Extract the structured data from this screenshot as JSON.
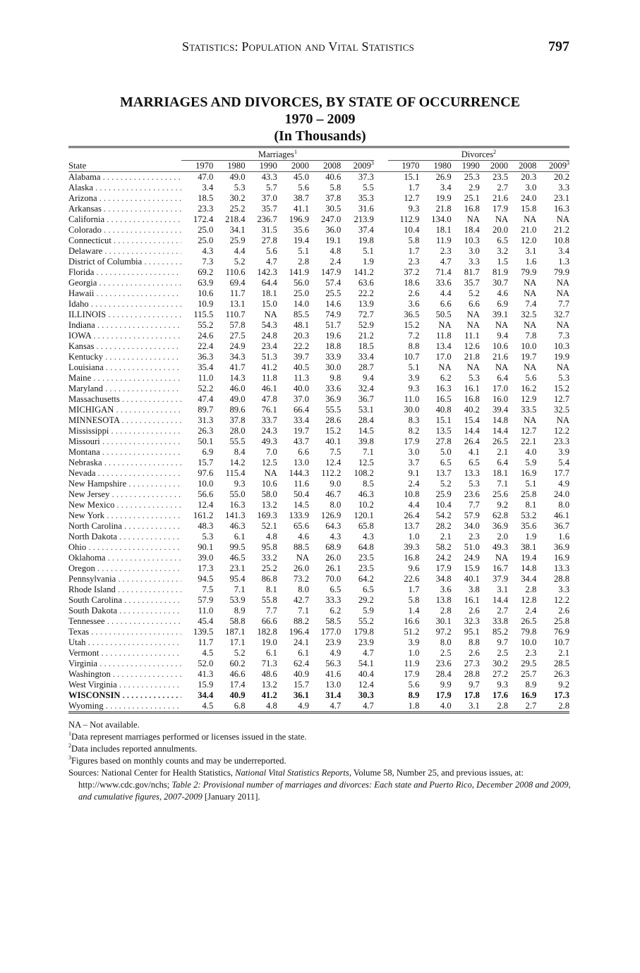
{
  "header": {
    "running_title": "Statistics: Population and Vital Statistics",
    "page_number": "797"
  },
  "title": {
    "line1": "MARRIAGES AND DIVORCES, BY STATE OF OCCURRENCE",
    "line2": "1970 – 2009",
    "line3": "(In Thousands)"
  },
  "table": {
    "state_header": "State",
    "groups": [
      {
        "label": "Marriages",
        "sup": "1"
      },
      {
        "label": "Divorces",
        "sup": "2"
      }
    ],
    "years": [
      "1970",
      "1980",
      "1990",
      "2000",
      "2008",
      "2009"
    ],
    "last_year_sup": "3",
    "rows": [
      {
        "state": "Alabama",
        "m": [
          "47.0",
          "49.0",
          "43.3",
          "45.0",
          "40.6",
          "37.3"
        ],
        "d": [
          "15.1",
          "26.9",
          "25.3",
          "23.5",
          "20.3",
          "20.2"
        ]
      },
      {
        "state": "Alaska",
        "m": [
          "3.4",
          "5.3",
          "5.7",
          "5.6",
          "5.8",
          "5.5"
        ],
        "d": [
          "1.7",
          "3.4",
          "2.9",
          "2.7",
          "3.0",
          "3.3"
        ]
      },
      {
        "state": "Arizona",
        "m": [
          "18.5",
          "30.2",
          "37.0",
          "38.7",
          "37.8",
          "35.3"
        ],
        "d": [
          "12.7",
          "19.9",
          "25.1",
          "21.6",
          "24.0",
          "23.1"
        ]
      },
      {
        "state": "Arkansas",
        "m": [
          "23.3",
          "25.2",
          "35.7",
          "41.1",
          "30.5",
          "31.6"
        ],
        "d": [
          "9.3",
          "21.8",
          "16.8",
          "17.9",
          "15.8",
          "16.3"
        ]
      },
      {
        "state": "California",
        "m": [
          "172.4",
          "218.4",
          "236.7",
          "196.9",
          "247.0",
          "213.9"
        ],
        "d": [
          "112.9",
          "134.0",
          "NA",
          "NA",
          "NA",
          "NA"
        ]
      },
      {
        "state": "Colorado",
        "m": [
          "25.0",
          "34.1",
          "31.5",
          "35.6",
          "36.0",
          "37.4"
        ],
        "d": [
          "10.4",
          "18.1",
          "18.4",
          "20.0",
          "21.0",
          "21.2"
        ]
      },
      {
        "state": "Connecticut",
        "m": [
          "25.0",
          "25.9",
          "27.8",
          "19.4",
          "19.1",
          "19.8"
        ],
        "d": [
          "5.8",
          "11.9",
          "10.3",
          "6.5",
          "12.0",
          "10.8"
        ]
      },
      {
        "state": "Delaware",
        "m": [
          "4.3",
          "4.4",
          "5.6",
          "5.1",
          "4.8",
          "5.1"
        ],
        "d": [
          "1.7",
          "2.3",
          "3.0",
          "3.2",
          "3.1",
          "3.4"
        ]
      },
      {
        "state": "District of Columbia",
        "m": [
          "7.3",
          "5.2",
          "4.7",
          "2.8",
          "2.4",
          "1.9"
        ],
        "d": [
          "2.3",
          "4.7",
          "3.3",
          "1.5",
          "1.6",
          "1.3"
        ]
      },
      {
        "state": "Florida",
        "m": [
          "69.2",
          "110.6",
          "142.3",
          "141.9",
          "147.9",
          "141.2"
        ],
        "d": [
          "37.2",
          "71.4",
          "81.7",
          "81.9",
          "79.9",
          "79.9"
        ]
      },
      {
        "state": "Georgia",
        "m": [
          "63.9",
          "69.4",
          "64.4",
          "56.0",
          "57.4",
          "63.6"
        ],
        "d": [
          "18.6",
          "33.6",
          "35.7",
          "30.7",
          "NA",
          "NA"
        ]
      },
      {
        "state": "Hawaii",
        "m": [
          "10.6",
          "11.7",
          "18.1",
          "25.0",
          "25.5",
          "22.2"
        ],
        "d": [
          "2.6",
          "4.4",
          "5.2",
          "4.6",
          "NA",
          "NA"
        ]
      },
      {
        "state": "Idaho",
        "m": [
          "10.9",
          "13.1",
          "15.0",
          "14.0",
          "14.6",
          "13.9"
        ],
        "d": [
          "3.6",
          "6.6",
          "6.6",
          "6.9",
          "7.4",
          "7.7"
        ]
      },
      {
        "state": "ILLINOIS",
        "m": [
          "115.5",
          "110.7",
          "NA",
          "85.5",
          "74.9",
          "72.7"
        ],
        "d": [
          "36.5",
          "50.5",
          "NA",
          "39.1",
          "32.5",
          "32.7"
        ]
      },
      {
        "state": "Indiana",
        "m": [
          "55.2",
          "57.8",
          "54.3",
          "48.1",
          "51.7",
          "52.9"
        ],
        "d": [
          "15.2",
          "NA",
          "NA",
          "NA",
          "NA",
          "NA"
        ]
      },
      {
        "state": "IOWA",
        "m": [
          "24.6",
          "27.5",
          "24.8",
          "20.3",
          "19.6",
          "21.2"
        ],
        "d": [
          "7.2",
          "11.8",
          "11.1",
          "9.4",
          "7.8",
          "7.3"
        ]
      },
      {
        "state": "Kansas",
        "m": [
          "22.4",
          "24.9",
          "23.4",
          "22.2",
          "18.8",
          "18.5"
        ],
        "d": [
          "8.8",
          "13.4",
          "12.6",
          "10.6",
          "10.0",
          "10.3"
        ]
      },
      {
        "state": "Kentucky",
        "m": [
          "36.3",
          "34.3",
          "51.3",
          "39.7",
          "33.9",
          "33.4"
        ],
        "d": [
          "10.7",
          "17.0",
          "21.8",
          "21.6",
          "19.7",
          "19.9"
        ]
      },
      {
        "state": "Louisiana",
        "m": [
          "35.4",
          "41.7",
          "41.2",
          "40.5",
          "30.0",
          "28.7"
        ],
        "d": [
          "5.1",
          "NA",
          "NA",
          "NA",
          "NA",
          "NA"
        ]
      },
      {
        "state": "Maine",
        "m": [
          "11.0",
          "14.3",
          "11.8",
          "11.3",
          "9.8",
          "9.4"
        ],
        "d": [
          "3.9",
          "6.2",
          "5.3",
          "6.4",
          "5.6",
          "5.3"
        ]
      },
      {
        "state": "Maryland",
        "m": [
          "52.2",
          "46.0",
          "46.1",
          "40.0",
          "33.6",
          "32.4"
        ],
        "d": [
          "9.3",
          "16.3",
          "16.1",
          "17.0",
          "16.2",
          "15.2"
        ]
      },
      {
        "state": "Massachusetts",
        "m": [
          "47.4",
          "49.0",
          "47.8",
          "37.0",
          "36.9",
          "36.7"
        ],
        "d": [
          "11.0",
          "16.5",
          "16.8",
          "16.0",
          "12.9",
          "12.7"
        ]
      },
      {
        "state": "MICHIGAN",
        "m": [
          "89.7",
          "89.6",
          "76.1",
          "66.4",
          "55.5",
          "53.1"
        ],
        "d": [
          "30.0",
          "40.8",
          "40.2",
          "39.4",
          "33.5",
          "32.5"
        ]
      },
      {
        "state": "MINNESOTA",
        "m": [
          "31.3",
          "37.8",
          "33.7",
          "33.4",
          "28.6",
          "28.4"
        ],
        "d": [
          "8.3",
          "15.1",
          "15.4",
          "14.8",
          "NA",
          "NA"
        ]
      },
      {
        "state": "Mississippi",
        "m": [
          "26.3",
          "28.0",
          "24.3",
          "19.7",
          "15.2",
          "14.5"
        ],
        "d": [
          "8.2",
          "13.5",
          "14.4",
          "14.4",
          "12.7",
          "12.2"
        ]
      },
      {
        "state": "Missouri",
        "m": [
          "50.1",
          "55.5",
          "49.3",
          "43.7",
          "40.1",
          "39.8"
        ],
        "d": [
          "17.9",
          "27.8",
          "26.4",
          "26.5",
          "22.1",
          "23.3"
        ]
      },
      {
        "state": "Montana",
        "m": [
          "6.9",
          "8.4",
          "7.0",
          "6.6",
          "7.5",
          "7.1"
        ],
        "d": [
          "3.0",
          "5.0",
          "4.1",
          "2.1",
          "4.0",
          "3.9"
        ]
      },
      {
        "state": "Nebraska",
        "m": [
          "15.7",
          "14.2",
          "12.5",
          "13.0",
          "12.4",
          "12.5"
        ],
        "d": [
          "3.7",
          "6.5",
          "6.5",
          "6.4",
          "5.9",
          "5.4"
        ]
      },
      {
        "state": "Nevada",
        "m": [
          "97.6",
          "115.4",
          "NA",
          "144.3",
          "112.2",
          "108.2"
        ],
        "d": [
          "9.1",
          "13.7",
          "13.3",
          "18.1",
          "16.9",
          "17.7"
        ]
      },
      {
        "state": "New Hampshire",
        "m": [
          "10.0",
          "9.3",
          "10.6",
          "11.6",
          "9.0",
          "8.5"
        ],
        "d": [
          "2.4",
          "5.2",
          "5.3",
          "7.1",
          "5.1",
          "4.9"
        ]
      },
      {
        "state": "New Jersey",
        "m": [
          "56.6",
          "55.0",
          "58.0",
          "50.4",
          "46.7",
          "46.3"
        ],
        "d": [
          "10.8",
          "25.9",
          "23.6",
          "25.6",
          "25.8",
          "24.0"
        ]
      },
      {
        "state": "New Mexico",
        "m": [
          "12.4",
          "16.3",
          "13.2",
          "14.5",
          "8.0",
          "10.2"
        ],
        "d": [
          "4.4",
          "10.4",
          "7.7",
          "9.2",
          "8.1",
          "8.0"
        ]
      },
      {
        "state": "New York",
        "m": [
          "161.2",
          "141.3",
          "169.3",
          "133.9",
          "126.9",
          "120.1"
        ],
        "d": [
          "26.4",
          "54.2",
          "57.9",
          "62.8",
          "53.2",
          "46.1"
        ]
      },
      {
        "state": "North Carolina",
        "m": [
          "48.3",
          "46.3",
          "52.1",
          "65.6",
          "64.3",
          "65.8"
        ],
        "d": [
          "13.7",
          "28.2",
          "34.0",
          "36.9",
          "35.6",
          "36.7"
        ]
      },
      {
        "state": "North Dakota",
        "m": [
          "5.3",
          "6.1",
          "4.8",
          "4.6",
          "4.3",
          "4.3"
        ],
        "d": [
          "1.0",
          "2.1",
          "2.3",
          "2.0",
          "1.9",
          "1.6"
        ]
      },
      {
        "state": "Ohio",
        "m": [
          "90.1",
          "99.5",
          "95.8",
          "88.5",
          "68.9",
          "64.8"
        ],
        "d": [
          "39.3",
          "58.2",
          "51.0",
          "49.3",
          "38.1",
          "36.9"
        ]
      },
      {
        "state": "Oklahoma",
        "m": [
          "39.0",
          "46.5",
          "33.2",
          "NA",
          "26.0",
          "23.5"
        ],
        "d": [
          "16.8",
          "24.2",
          "24.9",
          "NA",
          "19.4",
          "16.9"
        ]
      },
      {
        "state": "Oregon",
        "m": [
          "17.3",
          "23.1",
          "25.2",
          "26.0",
          "26.1",
          "23.5"
        ],
        "d": [
          "9.6",
          "17.9",
          "15.9",
          "16.7",
          "14.8",
          "13.3"
        ]
      },
      {
        "state": "Pennsylvania",
        "m": [
          "94.5",
          "95.4",
          "86.8",
          "73.2",
          "70.0",
          "64.2"
        ],
        "d": [
          "22.6",
          "34.8",
          "40.1",
          "37.9",
          "34.4",
          "28.8"
        ]
      },
      {
        "state": "Rhode Island",
        "m": [
          "7.5",
          "7.1",
          "8.1",
          "8.0",
          "6.5",
          "6.5"
        ],
        "d": [
          "1.7",
          "3.6",
          "3.8",
          "3.1",
          "2.8",
          "3.3"
        ]
      },
      {
        "state": "South Carolina",
        "m": [
          "57.9",
          "53.9",
          "55.8",
          "42.7",
          "33.3",
          "29.2"
        ],
        "d": [
          "5.8",
          "13.8",
          "16.1",
          "14.4",
          "12.8",
          "12.2"
        ]
      },
      {
        "state": "South Dakota",
        "m": [
          "11.0",
          "8.9",
          "7.7",
          "7.1",
          "6.2",
          "5.9"
        ],
        "d": [
          "1.4",
          "2.8",
          "2.6",
          "2.7",
          "2.4",
          "2.6"
        ]
      },
      {
        "state": "Tennessee",
        "m": [
          "45.4",
          "58.8",
          "66.6",
          "88.2",
          "58.5",
          "55.2"
        ],
        "d": [
          "16.6",
          "30.1",
          "32.3",
          "33.8",
          "26.5",
          "25.8"
        ]
      },
      {
        "state": "Texas",
        "m": [
          "139.5",
          "187.1",
          "182.8",
          "196.4",
          "177.0",
          "179.8"
        ],
        "d": [
          "51.2",
          "97.2",
          "95.1",
          "85.2",
          "79.8",
          "76.9"
        ]
      },
      {
        "state": "Utah",
        "m": [
          "11.7",
          "17.1",
          "19.0",
          "24.1",
          "23.9",
          "23.9"
        ],
        "d": [
          "3.9",
          "8.0",
          "8.8",
          "9.7",
          "10.0",
          "10.7"
        ]
      },
      {
        "state": "Vermont",
        "m": [
          "4.5",
          "5.2",
          "6.1",
          "6.1",
          "4.9",
          "4.7"
        ],
        "d": [
          "1.0",
          "2.5",
          "2.6",
          "2.5",
          "2.3",
          "2.1"
        ]
      },
      {
        "state": "Virginia",
        "m": [
          "52.0",
          "60.2",
          "71.3",
          "62.4",
          "56.3",
          "54.1"
        ],
        "d": [
          "11.9",
          "23.6",
          "27.3",
          "30.2",
          "29.5",
          "28.5"
        ]
      },
      {
        "state": "Washington",
        "m": [
          "41.3",
          "46.6",
          "48.6",
          "40.9",
          "41.6",
          "40.4"
        ],
        "d": [
          "17.9",
          "28.4",
          "28.8",
          "27.2",
          "25.7",
          "26.3"
        ]
      },
      {
        "state": "West Virginia",
        "m": [
          "15.9",
          "17.4",
          "13.2",
          "15.7",
          "13.0",
          "12.4"
        ],
        "d": [
          "5.6",
          "9.9",
          "9.7",
          "9.3",
          "8.9",
          "9.2"
        ]
      },
      {
        "state": "WISCONSIN",
        "bold": true,
        "m": [
          "34.4",
          "40.9",
          "41.2",
          "36.1",
          "31.4",
          "30.3"
        ],
        "d": [
          "8.9",
          "17.9",
          "17.8",
          "17.6",
          "16.9",
          "17.3"
        ]
      },
      {
        "state": "Wyoming",
        "m": [
          "4.5",
          "6.8",
          "4.8",
          "4.9",
          "4.7",
          "4.7"
        ],
        "d": [
          "1.8",
          "4.0",
          "3.1",
          "2.8",
          "2.7",
          "2.8"
        ]
      }
    ]
  },
  "notes": {
    "na": "NA – Not available.",
    "fn1_mark": "1",
    "fn1": "Data represent marriages performed or licenses issued in the state.",
    "fn2_mark": "2",
    "fn2": "Data includes reported annulments.",
    "fn3_mark": "3",
    "fn3": "Figures based on monthly counts and may be underreported.",
    "source_a": "Sources: National Center for Health Statistics, ",
    "source_b": "National Vital Statistics Reports,",
    "source_c": " Volume 58, Number 25, and previous issues, at: http://www.cdc.gov/nchs; ",
    "source_d": "Table 2: Provisional number of marriages and divorces: Each state and Puerto Rico, December 2008 and 2009, and cumulative figures, 2007-2009",
    "source_e": " [January 2011]."
  }
}
